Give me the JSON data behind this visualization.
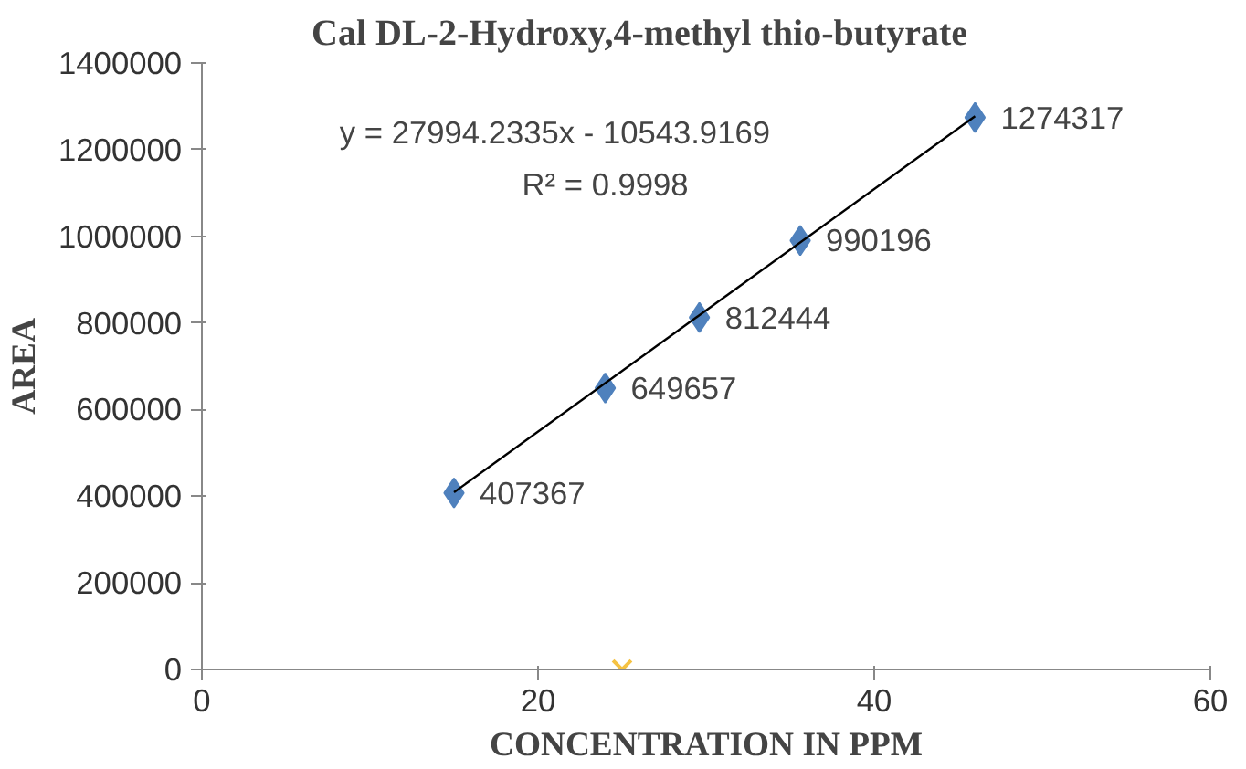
{
  "chart_data": {
    "type": "scatter",
    "title": "Cal DL-2-Hydroxy,4-methyl thio-butyrate",
    "xlabel": "CONCENTRATION IN PPM",
    "ylabel": "AREA",
    "xlim": [
      0,
      60
    ],
    "xticks": [
      0,
      20,
      40,
      60
    ],
    "ylim": [
      0,
      1400000
    ],
    "yticks": [
      0,
      200000,
      400000,
      600000,
      800000,
      1000000,
      1200000,
      1400000
    ],
    "grid": false,
    "series": [
      {
        "marker": "diamond",
        "color": "#4f81bd",
        "x": [
          15,
          24,
          29.6,
          35.6,
          46
        ],
        "values": [
          407367,
          649657,
          812444,
          990196,
          1274317
        ],
        "value_labels": [
          "407367",
          "649657",
          "812444",
          "990196",
          "1274317"
        ]
      },
      {
        "type": "line",
        "line_style": "solid",
        "color": "#000000",
        "x": [
          15,
          46
        ],
        "values": [
          409000,
          1277000
        ]
      },
      {
        "type": "scatter",
        "marker": "cross",
        "color": "#f5c242",
        "x": [
          25
        ],
        "values": [
          0
        ]
      }
    ],
    "annotations": [
      "y = 27994.2335x - 10543.9169",
      "R² = 0.9998"
    ]
  }
}
